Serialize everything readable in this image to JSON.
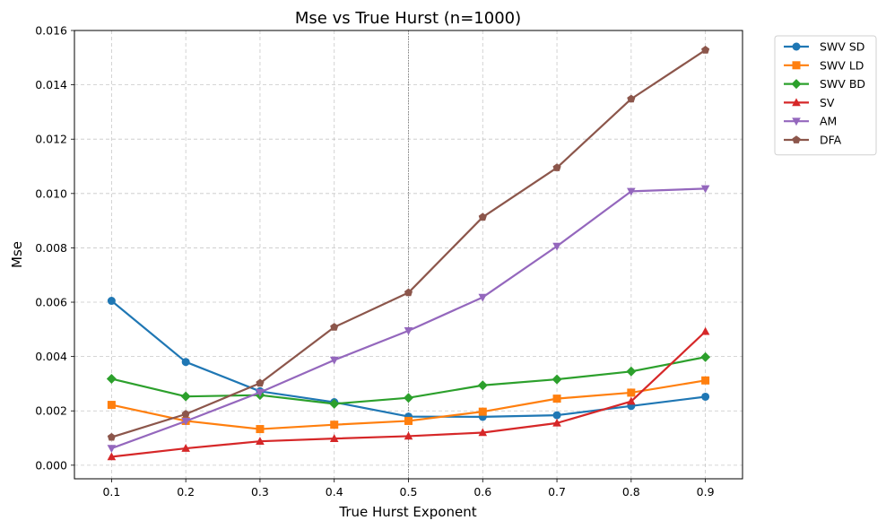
{
  "chart_data": {
    "type": "line",
    "title": "Mse vs True Hurst (n=1000)",
    "xlabel": "True Hurst Exponent",
    "ylabel": "Mse",
    "x": [
      0.1,
      0.2,
      0.3,
      0.4,
      0.5,
      0.6,
      0.7,
      0.8,
      0.9
    ],
    "x_tick_labels": [
      "0.1",
      "0.2",
      "0.3",
      "0.4",
      "0.5",
      "0.6",
      "0.7",
      "0.8",
      "0.9"
    ],
    "xlim": [
      0.05,
      0.95
    ],
    "ylim": [
      -0.0005,
      0.016
    ],
    "y_ticks": [
      0.0,
      0.002,
      0.004,
      0.006,
      0.008,
      0.01,
      0.012,
      0.014,
      0.016
    ],
    "y_tick_labels": [
      "0.000",
      "0.002",
      "0.004",
      "0.006",
      "0.008",
      "0.010",
      "0.012",
      "0.014",
      "0.016"
    ],
    "grid": true,
    "reference_line_x": 0.5,
    "legend_position": "outside-top-right",
    "series": [
      {
        "name": "SWV SD",
        "color": "#1f77b4",
        "marker": "circle",
        "values": [
          0.00605,
          0.0038,
          0.00272,
          0.00232,
          0.00179,
          0.00178,
          0.00184,
          0.00218,
          0.00252
        ]
      },
      {
        "name": "SWV LD",
        "color": "#ff7f0e",
        "marker": "square",
        "values": [
          0.00222,
          0.00163,
          0.00133,
          0.00149,
          0.00163,
          0.00197,
          0.00245,
          0.00267,
          0.00312
        ]
      },
      {
        "name": "SWV BD",
        "color": "#2ca02c",
        "marker": "diamond",
        "values": [
          0.00318,
          0.00253,
          0.00258,
          0.00226,
          0.00248,
          0.00294,
          0.00316,
          0.00345,
          0.00398
        ]
      },
      {
        "name": "SV",
        "color": "#d62728",
        "marker": "triangle-up",
        "values": [
          0.00031,
          0.00062,
          0.00088,
          0.00098,
          0.00107,
          0.0012,
          0.00155,
          0.00235,
          0.00492
        ]
      },
      {
        "name": "AM",
        "color": "#9467bd",
        "marker": "triangle-down",
        "values": [
          0.00062,
          0.00162,
          0.00268,
          0.00387,
          0.00495,
          0.00618,
          0.00806,
          0.01008,
          0.01018
        ]
      },
      {
        "name": "DFA",
        "color": "#8c564b",
        "marker": "pentagon",
        "values": [
          0.00103,
          0.00188,
          0.00302,
          0.00508,
          0.00635,
          0.00913,
          0.01095,
          0.01348,
          0.01528
        ]
      }
    ]
  }
}
